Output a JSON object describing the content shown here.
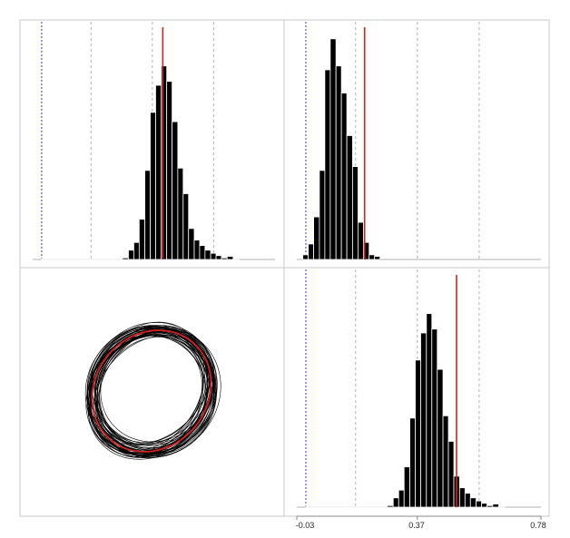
{
  "chart_data": [
    {
      "type": "bar",
      "panel": "top-left",
      "kind": "histogram",
      "xlim": [
        -0.03,
        0.78
      ],
      "bins": [
        {
          "x0": 0.0,
          "x1": 0.27,
          "count": 1
        },
        {
          "x0": 0.27,
          "x1": 0.29,
          "count": 2
        },
        {
          "x0": 0.29,
          "x1": 0.308,
          "count": 12
        },
        {
          "x0": 0.308,
          "x1": 0.326,
          "count": 22
        },
        {
          "x0": 0.326,
          "x1": 0.345,
          "count": 52
        },
        {
          "x0": 0.345,
          "x1": 0.363,
          "count": 115
        },
        {
          "x0": 0.363,
          "x1": 0.381,
          "count": 190
        },
        {
          "x0": 0.381,
          "x1": 0.4,
          "count": 225
        },
        {
          "x0": 0.4,
          "x1": 0.418,
          "count": 250
        },
        {
          "x0": 0.418,
          "x1": 0.436,
          "count": 230
        },
        {
          "x0": 0.436,
          "x1": 0.455,
          "count": 178
        },
        {
          "x0": 0.455,
          "x1": 0.473,
          "count": 118
        },
        {
          "x0": 0.473,
          "x1": 0.491,
          "count": 85
        },
        {
          "x0": 0.491,
          "x1": 0.51,
          "count": 40
        },
        {
          "x0": 0.51,
          "x1": 0.528,
          "count": 25
        },
        {
          "x0": 0.528,
          "x1": 0.546,
          "count": 18
        },
        {
          "x0": 0.546,
          "x1": 0.565,
          "count": 12
        },
        {
          "x0": 0.565,
          "x1": 0.583,
          "count": 8
        },
        {
          "x0": 0.583,
          "x1": 0.601,
          "count": 5
        },
        {
          "x0": 0.601,
          "x1": 0.62,
          "count": 2
        },
        {
          "x0": 0.62,
          "x1": 0.64,
          "count": 4
        },
        {
          "x0": 0.64,
          "x1": 0.66,
          "count": 1
        }
      ],
      "ymax": 300,
      "reference_line": {
        "x": 0.405,
        "color": "#d42020"
      },
      "zero_line": {
        "x": 0.0,
        "color": "#3a3acf"
      },
      "grid_x": [
        0.165,
        0.37,
        0.575
      ],
      "grid": true
    },
    {
      "type": "bar",
      "panel": "top-right",
      "kind": "histogram",
      "xlim": [
        -0.03,
        0.78
      ],
      "bins": [
        {
          "x0": -0.01,
          "x1": 0.008,
          "count": 6
        },
        {
          "x0": 0.008,
          "x1": 0.026,
          "count": 20
        },
        {
          "x0": 0.026,
          "x1": 0.045,
          "count": 55
        },
        {
          "x0": 0.045,
          "x1": 0.063,
          "count": 115
        },
        {
          "x0": 0.063,
          "x1": 0.081,
          "count": 245
        },
        {
          "x0": 0.081,
          "x1": 0.1,
          "count": 285
        },
        {
          "x0": 0.1,
          "x1": 0.118,
          "count": 250
        },
        {
          "x0": 0.118,
          "x1": 0.136,
          "count": 215
        },
        {
          "x0": 0.136,
          "x1": 0.155,
          "count": 160
        },
        {
          "x0": 0.155,
          "x1": 0.173,
          "count": 120
        },
        {
          "x0": 0.173,
          "x1": 0.191,
          "count": 48
        },
        {
          "x0": 0.191,
          "x1": 0.21,
          "count": 22
        },
        {
          "x0": 0.21,
          "x1": 0.228,
          "count": 6
        },
        {
          "x0": 0.228,
          "x1": 0.246,
          "count": 4
        }
      ],
      "ymax": 300,
      "reference_line": {
        "x": 0.195,
        "color": "#d42020"
      },
      "zero_line": {
        "x": 0.0,
        "color": "#3a3acf"
      },
      "grid_x": [
        0.165,
        0.37,
        0.575
      ],
      "grid": true
    },
    {
      "type": "line",
      "panel": "bottom-left",
      "kind": "ellipse-samples",
      "sample_count": 45,
      "reference": {
        "rx": 0.414,
        "ry": 0.468,
        "angle_deg": 40,
        "color": "#d42020"
      },
      "samples_color": "#000000"
    },
    {
      "type": "bar",
      "panel": "bottom-right",
      "kind": "histogram",
      "xlim": [
        -0.03,
        0.78
      ],
      "x_ticks": [
        "-0.03",
        "0.37",
        "0.78"
      ],
      "x_tick_values": [
        -0.03,
        0.37,
        0.78
      ],
      "bins": [
        {
          "x0": 0.0,
          "x1": 0.27,
          "count": 1
        },
        {
          "x0": 0.27,
          "x1": 0.29,
          "count": 2
        },
        {
          "x0": 0.29,
          "x1": 0.308,
          "count": 12
        },
        {
          "x0": 0.308,
          "x1": 0.326,
          "count": 22
        },
        {
          "x0": 0.326,
          "x1": 0.345,
          "count": 52
        },
        {
          "x0": 0.345,
          "x1": 0.363,
          "count": 115
        },
        {
          "x0": 0.363,
          "x1": 0.381,
          "count": 190
        },
        {
          "x0": 0.381,
          "x1": 0.4,
          "count": 225
        },
        {
          "x0": 0.4,
          "x1": 0.418,
          "count": 250
        },
        {
          "x0": 0.418,
          "x1": 0.436,
          "count": 230
        },
        {
          "x0": 0.436,
          "x1": 0.455,
          "count": 178
        },
        {
          "x0": 0.455,
          "x1": 0.473,
          "count": 118
        },
        {
          "x0": 0.473,
          "x1": 0.491,
          "count": 85
        },
        {
          "x0": 0.491,
          "x1": 0.51,
          "count": 40
        },
        {
          "x0": 0.51,
          "x1": 0.528,
          "count": 25
        },
        {
          "x0": 0.528,
          "x1": 0.546,
          "count": 18
        },
        {
          "x0": 0.546,
          "x1": 0.565,
          "count": 12
        },
        {
          "x0": 0.565,
          "x1": 0.583,
          "count": 8
        },
        {
          "x0": 0.583,
          "x1": 0.601,
          "count": 5
        },
        {
          "x0": 0.601,
          "x1": 0.62,
          "count": 2
        },
        {
          "x0": 0.62,
          "x1": 0.64,
          "count": 4
        },
        {
          "x0": 0.64,
          "x1": 0.66,
          "count": 1
        }
      ],
      "ymax": 300,
      "reference_line": {
        "x": 0.5,
        "color": "#d42020"
      },
      "zero_line": {
        "x": 0.0,
        "color": "#3a3acf"
      },
      "grid_x": [
        0.165,
        0.37,
        0.575
      ],
      "grid": true
    }
  ]
}
